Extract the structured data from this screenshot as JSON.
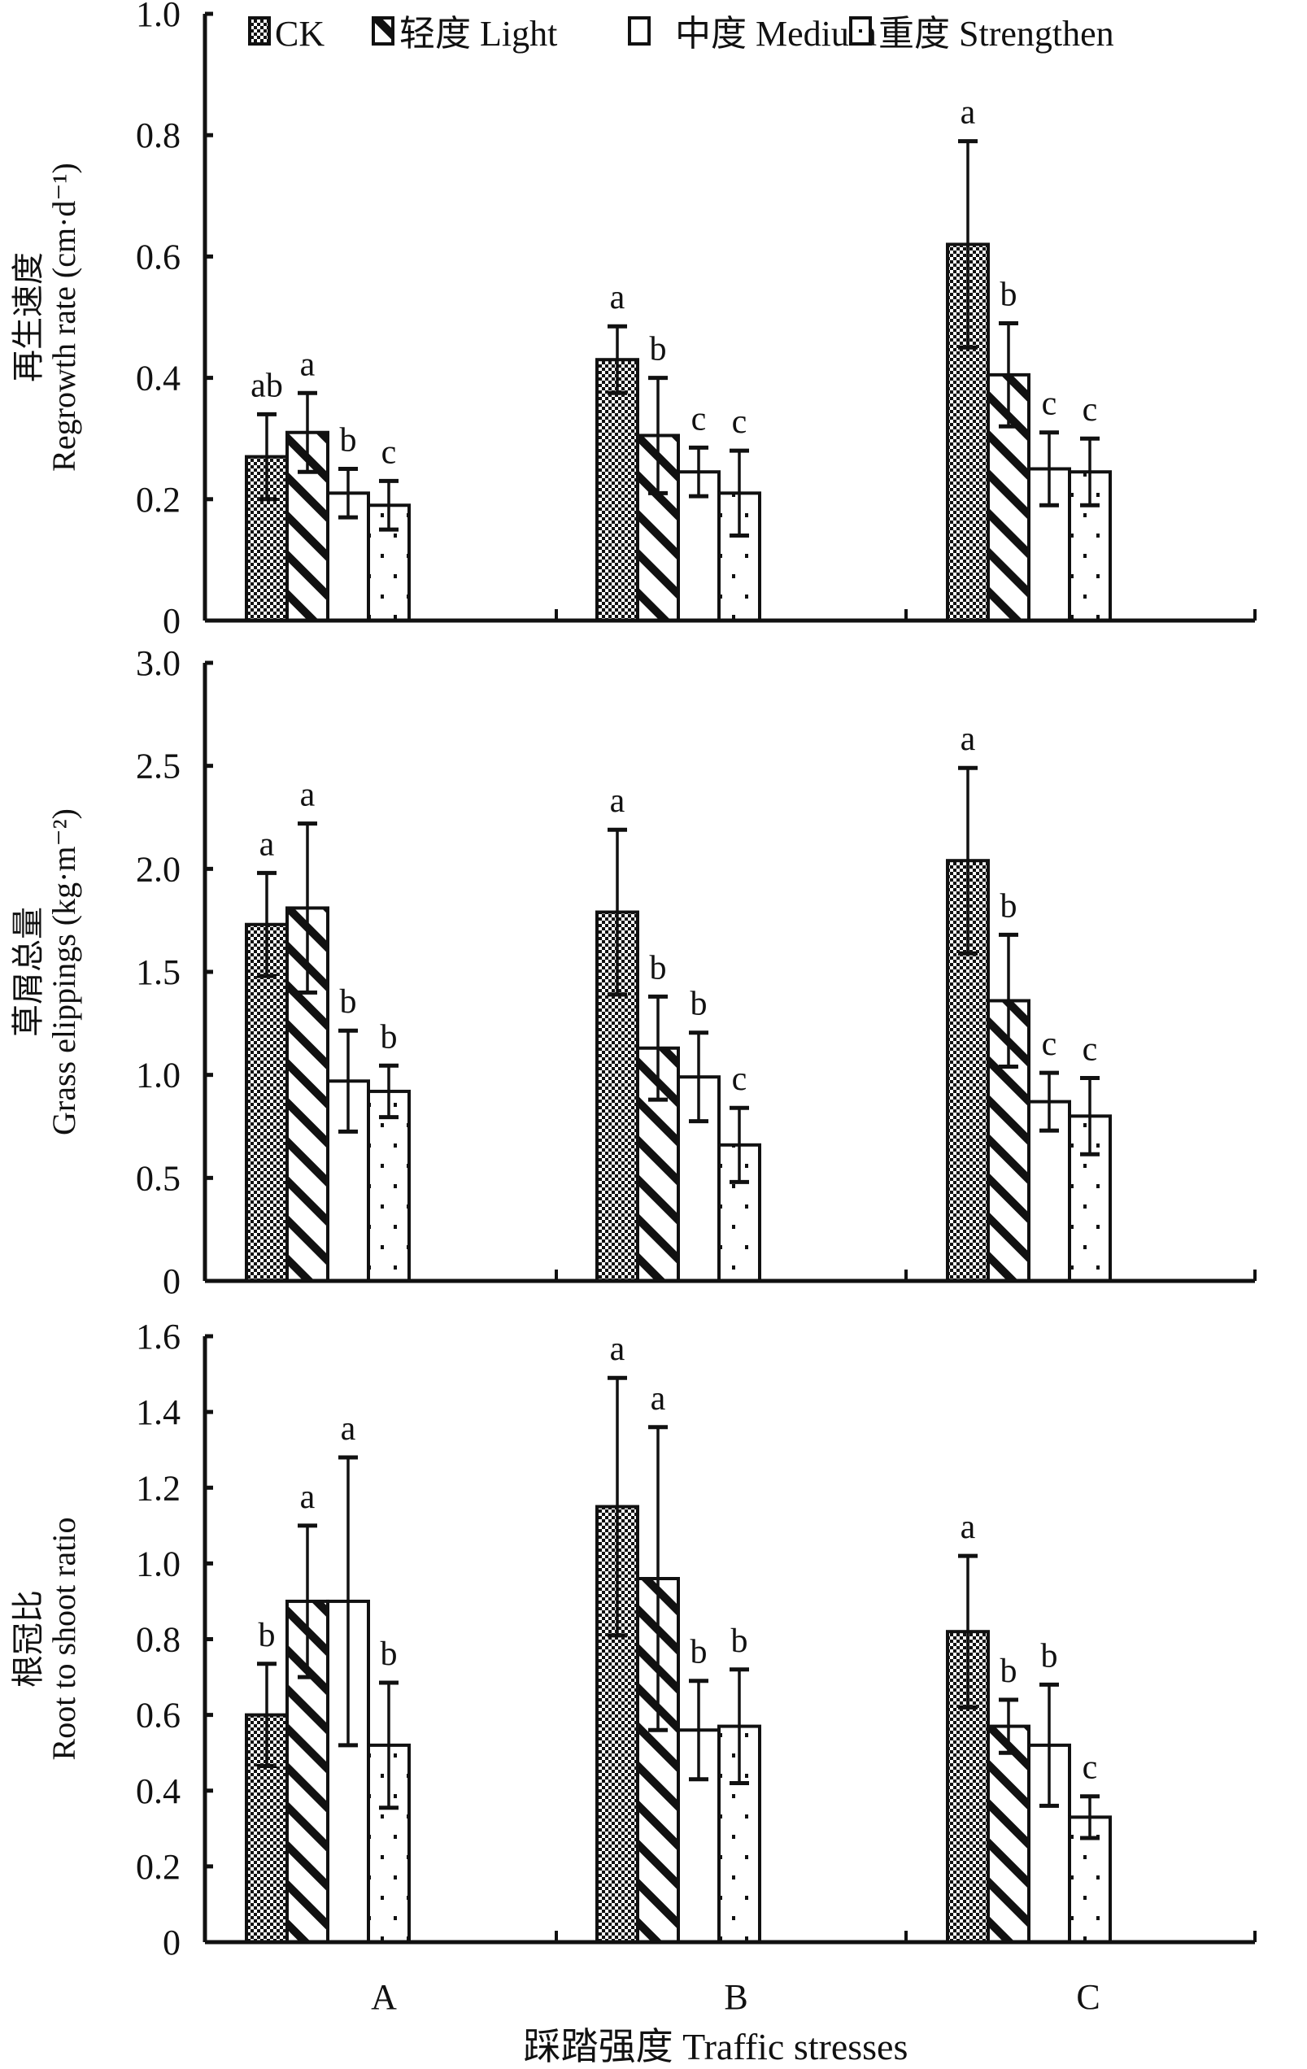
{
  "chart_data": [
    {
      "type": "bar",
      "panel": "top",
      "ylabel_cn": "再生速度",
      "ylabel_en": "Regrowth rate (cm·d⁻¹)",
      "ylim": [
        0,
        1.0
      ],
      "yticks": [
        0,
        0.2,
        0.4,
        0.6,
        0.8,
        1.0
      ],
      "ytick_labels": [
        "0",
        "0.2",
        "0.4",
        "0.6",
        "0.8",
        "1.0"
      ],
      "categories": [
        "A",
        "B",
        "C"
      ],
      "series": [
        {
          "name": "CK",
          "values": [
            0.27,
            0.43,
            0.62
          ],
          "err": [
            0.07,
            0.055,
            0.17
          ],
          "sig": [
            "ab",
            "a",
            "a"
          ]
        },
        {
          "name": "轻度 Light",
          "values": [
            0.31,
            0.305,
            0.405
          ],
          "err": [
            0.065,
            0.095,
            0.085
          ],
          "sig": [
            "a",
            "b",
            "b"
          ]
        },
        {
          "name": "中度 Medium",
          "values": [
            0.21,
            0.245,
            0.25
          ],
          "err": [
            0.04,
            0.04,
            0.06
          ],
          "sig": [
            "b",
            "c",
            "c"
          ]
        },
        {
          "name": "重度 Strengthen",
          "values": [
            0.19,
            0.21,
            0.245
          ],
          "err": [
            0.04,
            0.07,
            0.055
          ],
          "sig": [
            "c",
            "c",
            "c"
          ]
        }
      ],
      "legend": "top"
    },
    {
      "type": "bar",
      "panel": "middle",
      "ylabel_cn": "草屑总量",
      "ylabel_en": "Grass elippings (kg·m⁻²)",
      "ylim": [
        0,
        3.0
      ],
      "yticks": [
        0,
        0.5,
        1.0,
        1.5,
        2.0,
        2.5,
        3.0
      ],
      "ytick_labels": [
        "0",
        "0.5",
        "1.0",
        "1.5",
        "2.0",
        "2.5",
        "3.0"
      ],
      "categories": [
        "A",
        "B",
        "C"
      ],
      "series": [
        {
          "name": "CK",
          "values": [
            1.73,
            1.79,
            2.04
          ],
          "err": [
            0.25,
            0.4,
            0.45
          ],
          "sig": [
            "a",
            "a",
            "a"
          ]
        },
        {
          "name": "轻度 Light",
          "values": [
            1.81,
            1.13,
            1.36
          ],
          "err": [
            0.41,
            0.25,
            0.32
          ],
          "sig": [
            "a",
            "b",
            "b"
          ]
        },
        {
          "name": "中度 Medium",
          "values": [
            0.97,
            0.99,
            0.87
          ],
          "err": [
            0.245,
            0.215,
            0.14
          ],
          "sig": [
            "b",
            "b",
            "c"
          ]
        },
        {
          "name": "重度 Strengthen",
          "values": [
            0.92,
            0.66,
            0.8
          ],
          "err": [
            0.125,
            0.18,
            0.185
          ],
          "sig": [
            "b",
            "c",
            "c"
          ]
        }
      ]
    },
    {
      "type": "bar",
      "panel": "bottom",
      "ylabel_cn": "根冠比",
      "ylabel_en": "Root to shoot ratio",
      "ylim": [
        0,
        1.6
      ],
      "yticks": [
        0,
        0.2,
        0.4,
        0.6,
        0.8,
        1.0,
        1.2,
        1.4,
        1.6
      ],
      "ytick_labels": [
        "0",
        "0.2",
        "0.4",
        "0.6",
        "0.8",
        "1.0",
        "1.2",
        "1.4",
        "1.6"
      ],
      "categories": [
        "A",
        "B",
        "C"
      ],
      "series": [
        {
          "name": "CK",
          "values": [
            0.6,
            1.15,
            0.82
          ],
          "err": [
            0.135,
            0.34,
            0.2
          ],
          "sig": [
            "b",
            "a",
            "a"
          ]
        },
        {
          "name": "轻度 Light",
          "values": [
            0.9,
            0.96,
            0.57
          ],
          "err": [
            0.2,
            0.4,
            0.07
          ],
          "sig": [
            "a",
            "a",
            "b"
          ]
        },
        {
          "name": "中度 Medium",
          "values": [
            0.9,
            0.56,
            0.52
          ],
          "err": [
            0.38,
            0.13,
            0.16
          ],
          "sig": [
            "a",
            "b",
            "b"
          ]
        },
        {
          "name": "重度 Strengthen",
          "values": [
            0.52,
            0.57,
            0.33
          ],
          "err": [
            0.165,
            0.15,
            0.055
          ],
          "sig": [
            "b",
            "b",
            "c"
          ]
        }
      ],
      "xlabel": "踩踏强度 Traffic stresses"
    }
  ],
  "legend": {
    "items": [
      {
        "label": "CK",
        "pattern": "checker"
      },
      {
        "label": "轻度 Light",
        "pattern": "diagonal"
      },
      {
        "label": "中度 Medium",
        "pattern": "blank"
      },
      {
        "label": "重度 Strengthen",
        "pattern": "dots"
      }
    ]
  },
  "xlabel": "踩踏强度 Traffic stresses",
  "colors": {
    "ink": "#111111",
    "background": "#ffffff"
  }
}
